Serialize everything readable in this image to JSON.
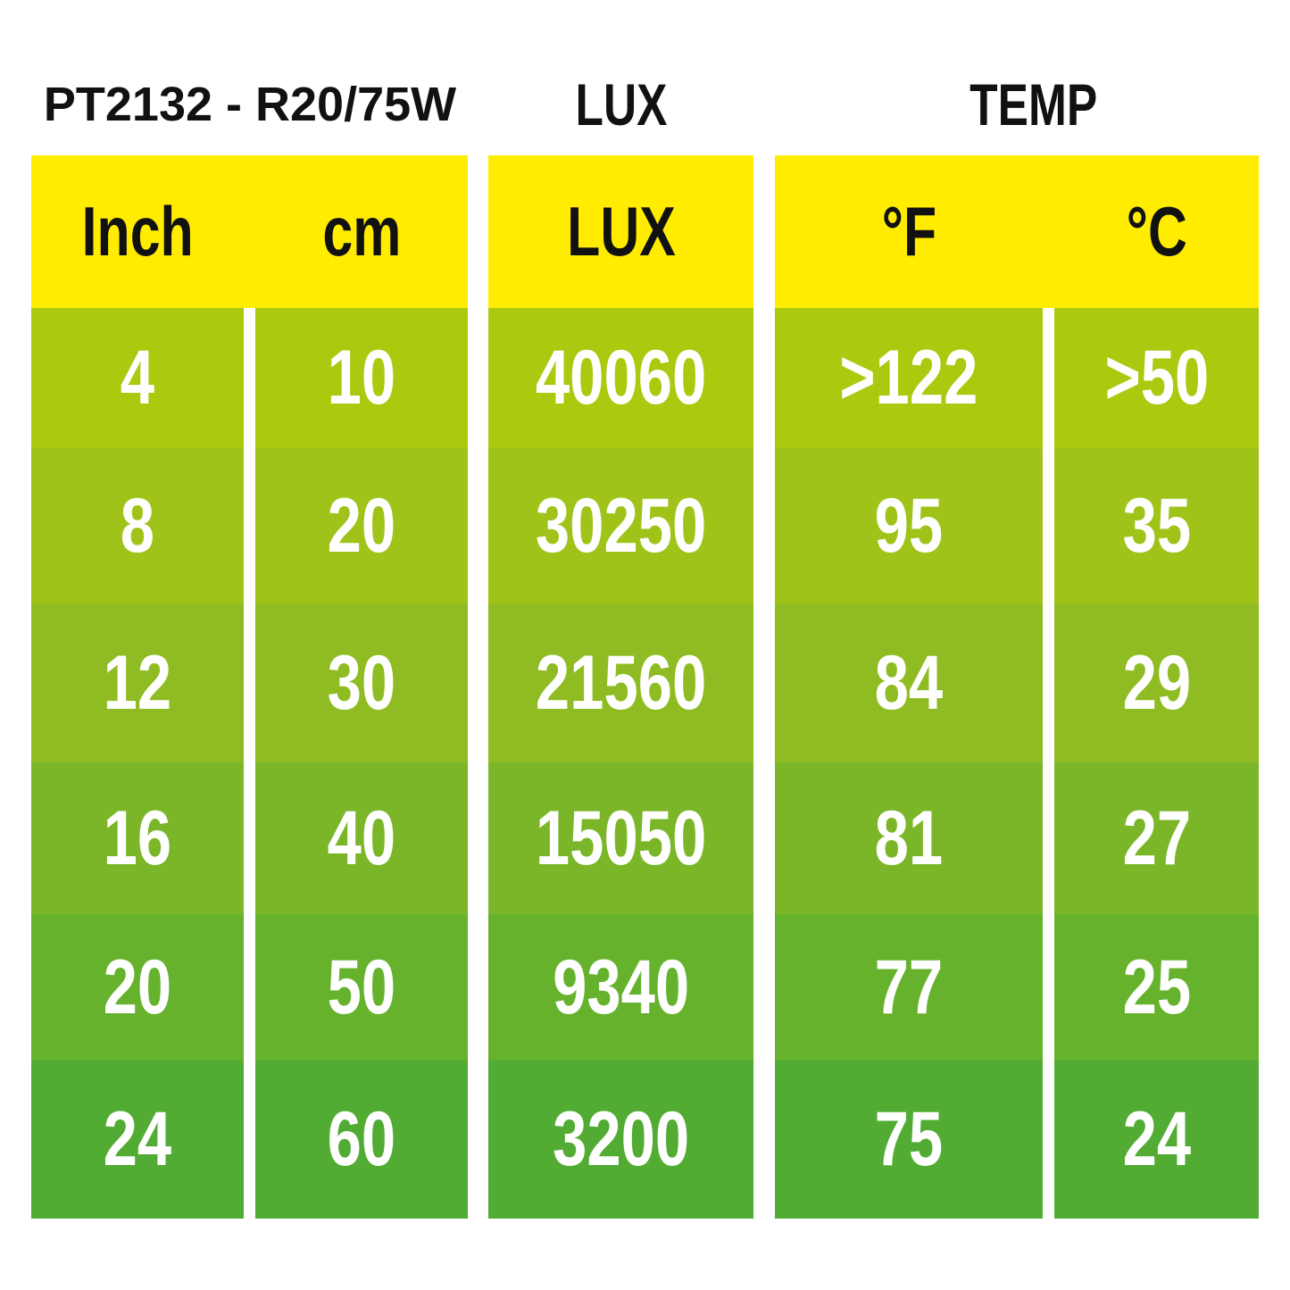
{
  "titles": {
    "product": "PT2132 - R20/75W",
    "lux": "LUX",
    "temp": "TEMP"
  },
  "chart_data": {
    "type": "table",
    "columns": [
      "Inch",
      "cm",
      "LUX",
      "°F",
      "°C"
    ],
    "rows": [
      [
        "4",
        "10",
        "40060",
        ">122",
        ">50"
      ],
      [
        "8",
        "20",
        "30250",
        "95",
        "35"
      ],
      [
        "12",
        "30",
        "21560",
        "84",
        "29"
      ],
      [
        "16",
        "40",
        "15050",
        "81",
        "27"
      ],
      [
        "20",
        "50",
        "9340",
        "77",
        "25"
      ],
      [
        "24",
        "60",
        "3200",
        "75",
        "24"
      ]
    ]
  },
  "colors": {
    "header": "#ffec00",
    "rows": [
      "#abc90f",
      "#a0c31a",
      "#8fbc22",
      "#7bb629",
      "#67b22d",
      "#52ab33"
    ]
  }
}
